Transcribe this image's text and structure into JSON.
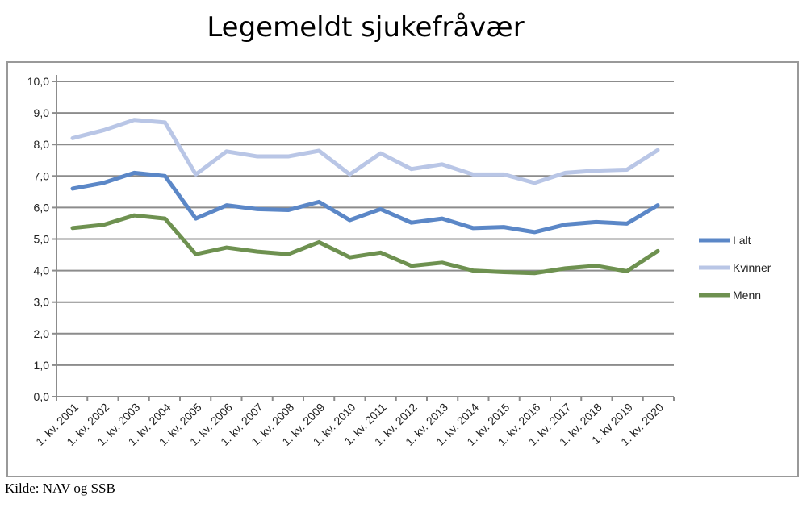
{
  "chart_data": {
    "type": "line",
    "title": "Legemeldt sjukefråvær",
    "source": "Kilde: NAV og SSB",
    "categories": [
      "1. kv. 2001",
      "1. kv. 2002",
      "1. kv. 2003",
      "1. kv. 2004",
      "1. kv. 2005",
      "1. kv. 2006",
      "1. kv. 2007",
      "1. kv. 2008",
      "1. kv. 2009",
      "1. kv. 2010",
      "1. kv. 2011",
      "1. kv. 2012",
      "1. kv. 2013",
      "1. kv. 2014",
      "1. kv. 2015",
      "1. kv. 2016",
      "1. kv. 2017",
      "1. kv. 2018",
      "1. kv 2019",
      "1. kv. 2020"
    ],
    "ylim": [
      0,
      10
    ],
    "yticks": [
      "0,0",
      "1,0",
      "2,0",
      "3,0",
      "4,0",
      "5,0",
      "6,0",
      "7,0",
      "8,0",
      "9,0",
      "10,0"
    ],
    "grid": true,
    "legend": "right",
    "series": [
      {
        "name": "I alt",
        "color": "#5b87c7",
        "values": [
          6.6,
          6.78,
          7.1,
          7.0,
          5.65,
          6.07,
          5.95,
          5.92,
          6.18,
          5.6,
          5.95,
          5.52,
          5.65,
          5.35,
          5.38,
          5.22,
          5.46,
          5.54,
          5.49,
          6.07
        ]
      },
      {
        "name": "Kvinner",
        "color": "#b9c6e6",
        "values": [
          8.2,
          8.45,
          8.78,
          8.7,
          7.05,
          7.78,
          7.62,
          7.62,
          7.8,
          7.05,
          7.72,
          7.22,
          7.37,
          7.05,
          7.05,
          6.78,
          7.1,
          7.17,
          7.2,
          7.82
        ]
      },
      {
        "name": "Menn",
        "color": "#6e9150",
        "values": [
          5.35,
          5.45,
          5.75,
          5.65,
          4.52,
          4.73,
          4.6,
          4.52,
          4.9,
          4.42,
          4.57,
          4.15,
          4.25,
          4.0,
          3.95,
          3.92,
          4.07,
          4.15,
          3.98,
          4.62
        ]
      }
    ]
  }
}
